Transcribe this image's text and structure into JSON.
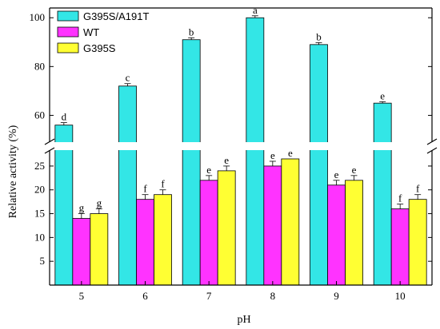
{
  "chart_data": {
    "type": "bar",
    "title": "",
    "xlabel": "pH",
    "ylabel": "Relative activity  (%)",
    "categories": [
      "5",
      "6",
      "7",
      "8",
      "9",
      "10"
    ],
    "y_axis_break": true,
    "lower_ylim": [
      0,
      27
    ],
    "upper_ylim": [
      50,
      104
    ],
    "lower_yticks": [
      "5",
      "10",
      "15",
      "20",
      "25"
    ],
    "upper_yticks": [
      "60",
      "80",
      "100"
    ],
    "legend_position": "top-left",
    "series": [
      {
        "name": "G395S/A191T",
        "color": "#33e6e6",
        "values": [
          56,
          72,
          91,
          100,
          89,
          65
        ],
        "errors": [
          1.0,
          1.0,
          0.8,
          0.8,
          0.8,
          0.6
        ],
        "labels": [
          "d",
          "c",
          "b",
          "a",
          "b",
          "e"
        ]
      },
      {
        "name": "WT",
        "color": "#ff33ff",
        "values": [
          14,
          18,
          22,
          25,
          21,
          16
        ],
        "errors": [
          1.0,
          1.0,
          1.0,
          1.0,
          1.0,
          1.0
        ],
        "labels": [
          "g",
          "f",
          "e",
          "e",
          "e",
          "f"
        ]
      },
      {
        "name": "G395S",
        "color": "#ffff33",
        "values": [
          15,
          19,
          24,
          26.5,
          22,
          18
        ],
        "errors": [
          1.0,
          1.0,
          1.0,
          0,
          1.0,
          1.0
        ],
        "labels": [
          "g",
          "f",
          "e",
          "e",
          "e",
          "f"
        ]
      }
    ]
  }
}
